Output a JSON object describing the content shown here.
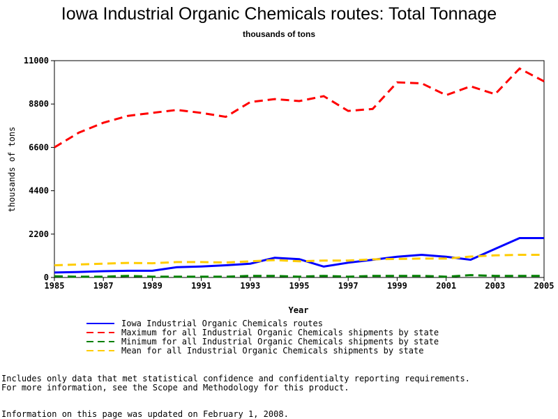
{
  "chart_data": {
    "type": "line",
    "title": "Iowa Industrial Organic Chemicals routes: Total Tonnage",
    "subtitle": "thousands of tons",
    "xlabel": "Year",
    "ylabel": "thousands of tons",
    "xlim": [
      1985,
      2005
    ],
    "ylim": [
      0,
      11000
    ],
    "x_ticks": [
      "1985",
      "1987",
      "1989",
      "1991",
      "1993",
      "1995",
      "1997",
      "1999",
      "2001",
      "2003",
      "2005"
    ],
    "y_ticks": [
      "0",
      "2200",
      "4400",
      "6600",
      "8800",
      "11000"
    ],
    "x": [
      1985,
      1986,
      1987,
      1988,
      1989,
      1990,
      1991,
      1992,
      1993,
      1994,
      1995,
      1996,
      1997,
      1998,
      1999,
      2000,
      2001,
      2002,
      2003,
      2004,
      2005
    ],
    "series": [
      {
        "name": "Iowa Industrial Organic Chemicals routes",
        "color": "#0000ff",
        "dash": "solid",
        "values": [
          250,
          280,
          320,
          340,
          340,
          520,
          560,
          620,
          700,
          1000,
          930,
          550,
          750,
          900,
          1050,
          1150,
          1050,
          900,
          1450,
          2000,
          2000
        ]
      },
      {
        "name": "Maximum for all Industrial Organic Chemicals shipments by state",
        "color": "#ff0000",
        "dash": "dashed",
        "values": [
          6600,
          7350,
          7850,
          8200,
          8350,
          8500,
          8350,
          8150,
          8900,
          9050,
          8950,
          9200,
          8450,
          8550,
          9900,
          9850,
          9250,
          9700,
          9300,
          10600,
          9950
        ]
      },
      {
        "name": "Minimum for all Industrial Organic Chemicals shipments by state",
        "color": "#008000",
        "dash": "dashed",
        "values": [
          60,
          40,
          40,
          80,
          40,
          40,
          40,
          40,
          80,
          80,
          40,
          80,
          40,
          80,
          80,
          80,
          40,
          120,
          80,
          80,
          80
        ]
      },
      {
        "name": "Mean for all Industrial Organic Chemicals shipments by state",
        "color": "#ffcc00",
        "dash": "dashed",
        "values": [
          620,
          660,
          700,
          740,
          720,
          780,
          780,
          760,
          820,
          880,
          820,
          860,
          860,
          920,
          940,
          960,
          960,
          1060,
          1120,
          1150,
          1150
        ]
      }
    ],
    "grid": false,
    "legend_position": "bottom"
  },
  "footnotes": {
    "line1": "Includes only data that met statistical confidence and confidentialty reporting requirements.",
    "line2": "For more information, see the Scope and Methodology for this product.",
    "line3": "Information on this page was updated on February 1, 2008."
  }
}
